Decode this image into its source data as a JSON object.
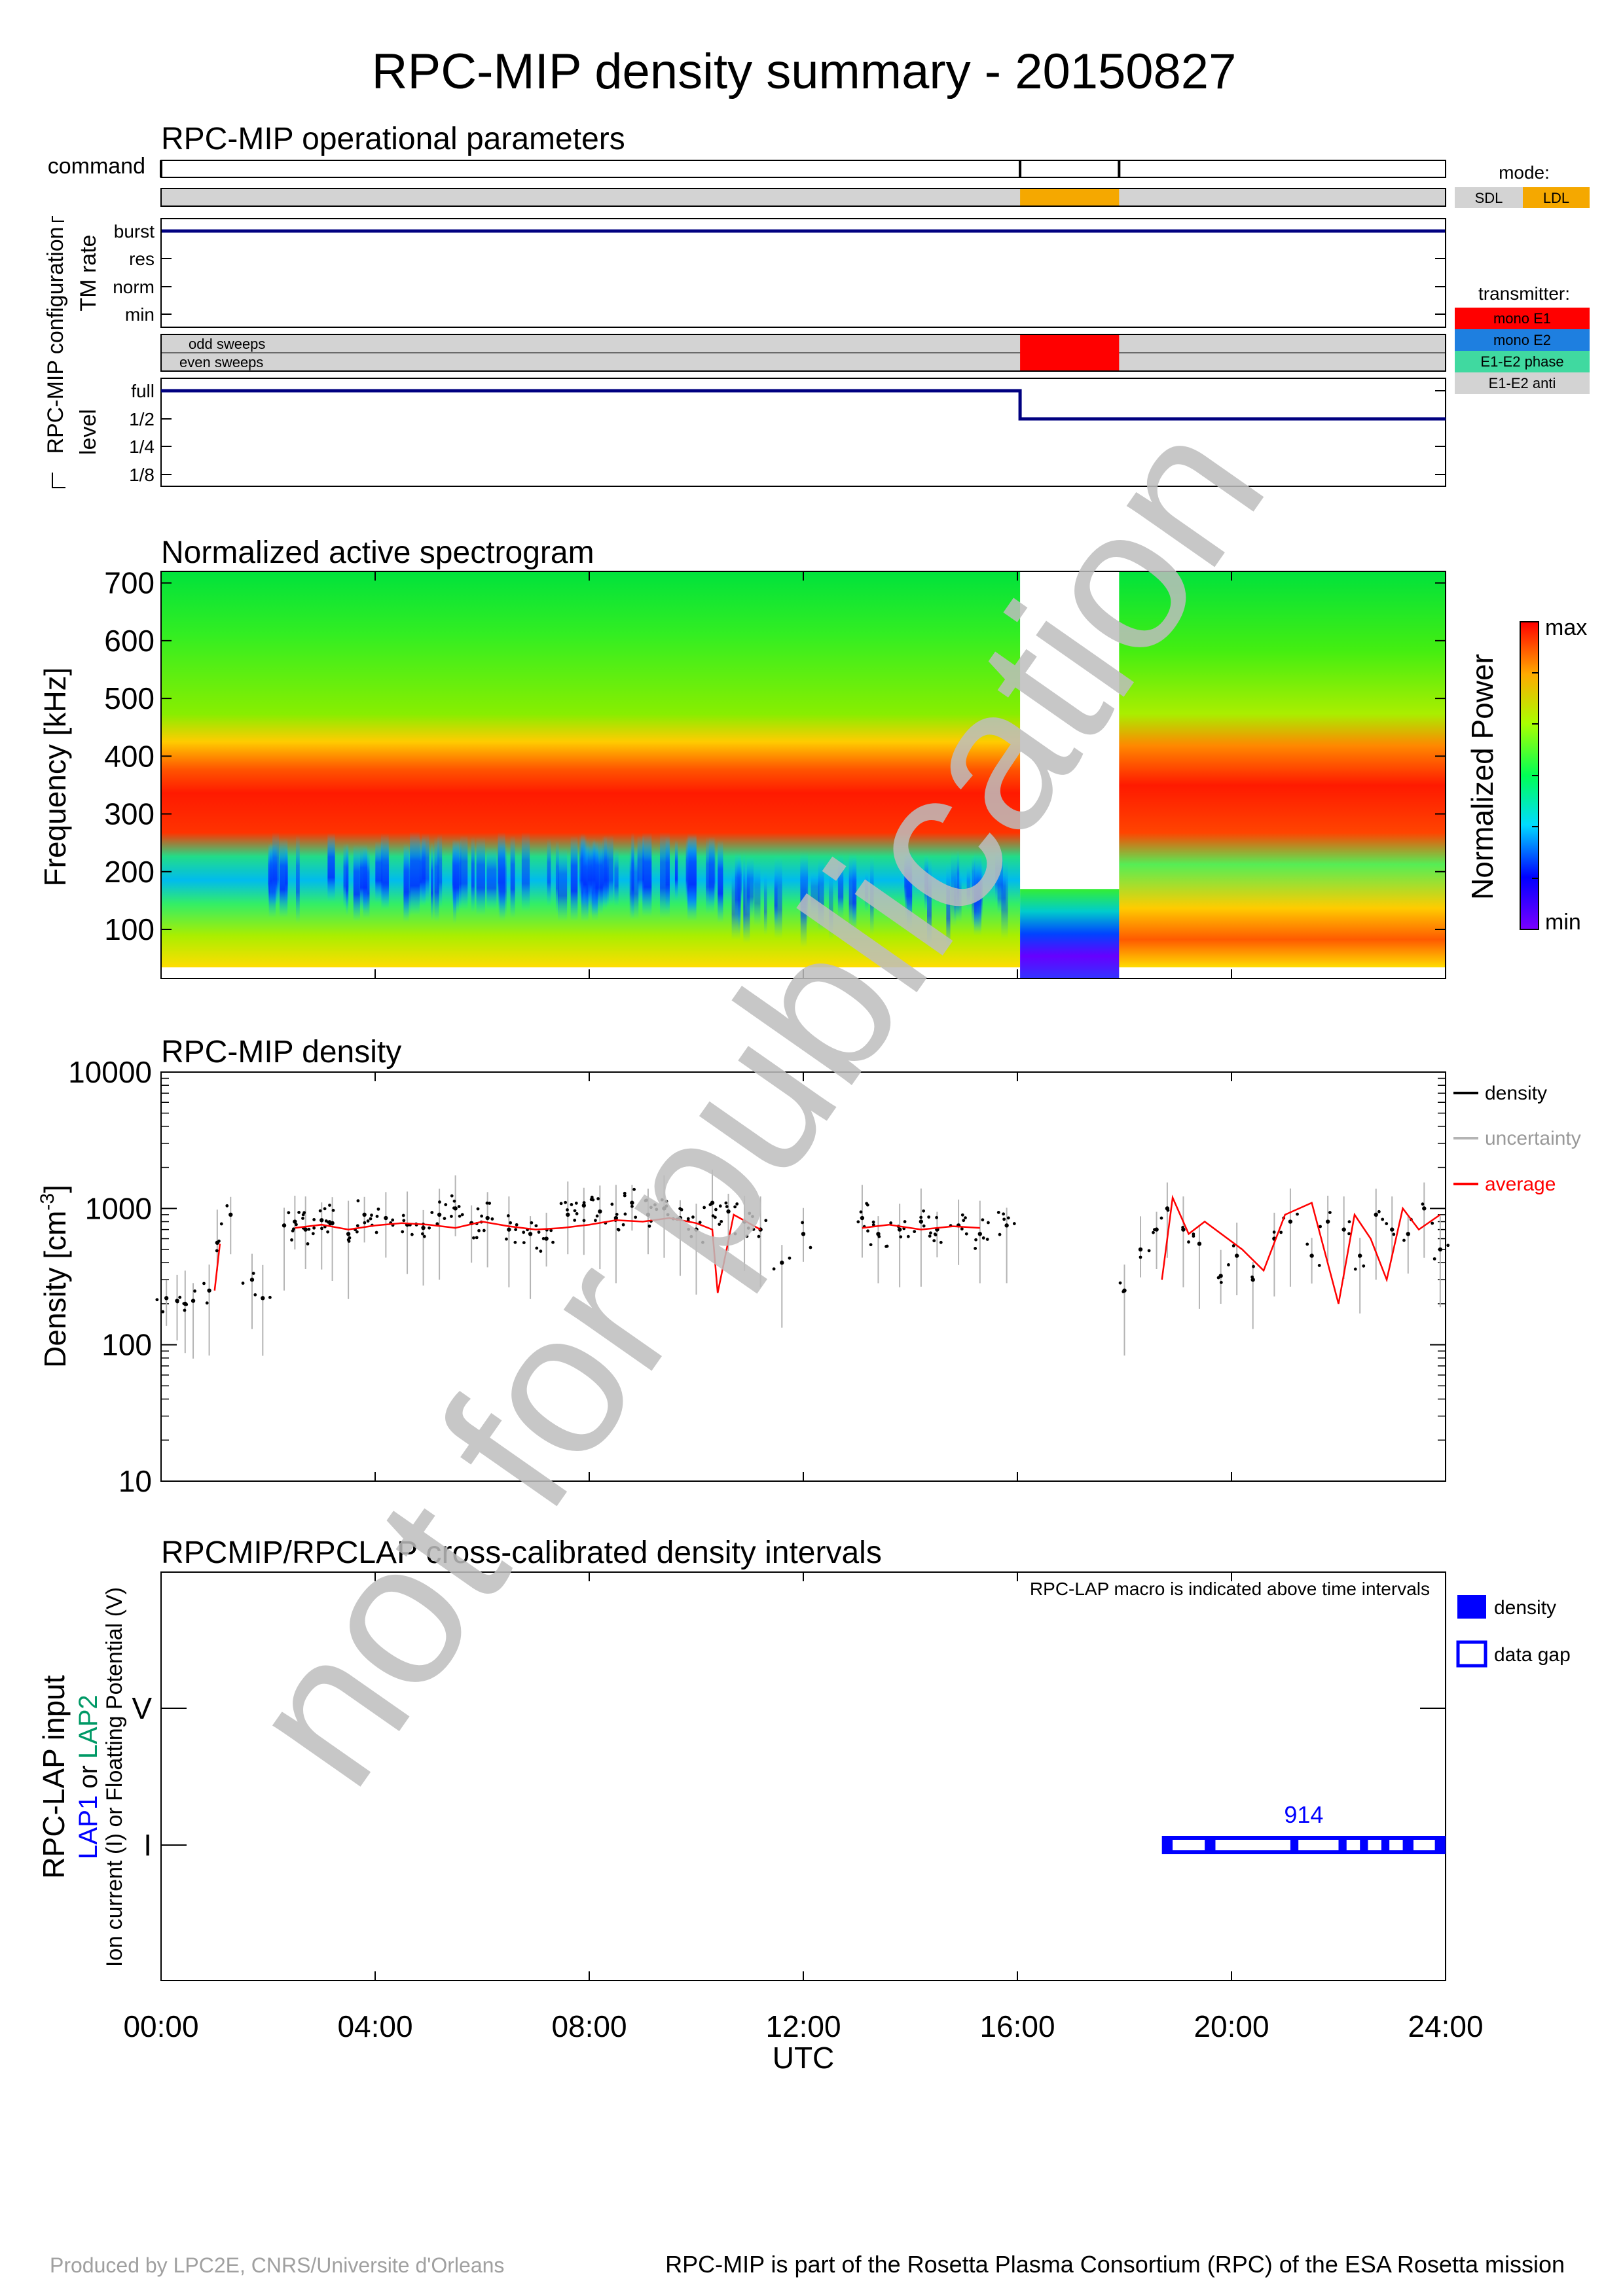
{
  "title": "RPC-MIP density summary - 20150827",
  "colors": {
    "mode_sdl": "#d3d3d3",
    "mode_ldl": "#f5a800",
    "tx_mono_e1": "#ff0000",
    "tx_mono_e2": "#1e7fe0",
    "tx_e1e2_phase": "#40d9a0",
    "tx_e1e2_anti": "#d3d3d3",
    "line_navy": "#000080",
    "density_avg": "#ff0000",
    "uncertainty": "#b4b4b4",
    "lap_blue": "#0000ff",
    "lap2_green": "#009966",
    "watermark": "#bdbdbd"
  },
  "ops": {
    "title": "RPC-MIP operational parameters",
    "command_label": "command",
    "config_label": "RPC-MIP configuration",
    "tm_rate_label": "TM rate",
    "tm_levels": [
      "burst",
      "res",
      "norm",
      "min"
    ],
    "sweeps": [
      "odd sweeps",
      "even sweeps"
    ],
    "level_label": "level",
    "level_values": [
      "full",
      "1/2",
      "1/4",
      "1/8"
    ],
    "mode_title": "mode:",
    "mode_items": [
      "SDL",
      "LDL"
    ],
    "transmitter_title": "transmitter:",
    "transmitter_items": [
      "mono E1",
      "mono E2",
      "E1-E2 phase",
      "E1-E2 anti"
    ],
    "command_ticks_h": [
      0,
      16.05,
      17.9
    ],
    "mode_segments": [
      {
        "start": 0,
        "end": 16.05,
        "mode": "SDL"
      },
      {
        "start": 16.05,
        "end": 17.9,
        "mode": "LDL"
      },
      {
        "start": 17.9,
        "end": 24,
        "mode": "SDL"
      }
    ],
    "tm_rate_series": [
      {
        "start": 0,
        "end": 24,
        "level": "burst"
      }
    ],
    "transmitter_segments": [
      {
        "start": 0,
        "end": 16.05,
        "tx": "E1-E2 anti"
      },
      {
        "start": 16.05,
        "end": 17.9,
        "tx": "mono E1"
      },
      {
        "start": 17.9,
        "end": 24,
        "tx": "E1-E2 anti"
      }
    ],
    "level_series": [
      {
        "start": 0,
        "end": 16.05,
        "level": "full"
      },
      {
        "start": 16.05,
        "end": 24,
        "level": "1/2"
      }
    ]
  },
  "spec": {
    "title": "Normalized active spectrogram",
    "ylabel": "Frequency [kHz]",
    "yticks": [
      "700",
      "600",
      "500",
      "400",
      "300",
      "200",
      "100"
    ],
    "colorbar_label": "Normalized Power",
    "cb_max": "max",
    "cb_min": "min"
  },
  "dens": {
    "title": "RPC-MIP density",
    "ylabel": "Density [cm",
    "ylabel_sup": "-3",
    "ylabel_end": "]",
    "yticks": [
      "10000",
      "1000",
      "100",
      "10"
    ],
    "legend": [
      "density",
      "uncertainty",
      "average"
    ]
  },
  "lap": {
    "title": "RPCMIP/RPCLAP cross-calibrated density intervals",
    "note": "RPC-LAP macro is indicated above time intervals",
    "ylabel1": "RPC-LAP input",
    "ylabel2_lap1": "LAP1",
    "ylabel2_or": "or",
    "ylabel2_lap2": "LAP2",
    "ylabel3": "Ion current (I) or Floatting Potential (V)",
    "yticks": [
      "V",
      "I"
    ],
    "macro": "914",
    "legend": [
      "density",
      "data gap"
    ]
  },
  "xaxis": {
    "ticks": [
      "00:00",
      "04:00",
      "08:00",
      "12:00",
      "16:00",
      "20:00",
      "24:00"
    ],
    "label": "UTC"
  },
  "footer": {
    "left": "Produced by LPC2E, CNRS/Universite d'Orleans",
    "right": "RPC-MIP is part of the Rosetta Plasma Consortium (RPC) of the ESA Rosetta mission"
  },
  "watermark": "not for publication",
  "chart_data": [
    {
      "type": "heatmap",
      "title": "Normalized active spectrogram",
      "ylabel": "Frequency [kHz]",
      "xlabel": "UTC",
      "xlim_hours": [
        0,
        24
      ],
      "ylim": [
        15,
        720
      ],
      "colorbar": "Normalized Power (min to max)",
      "profile_bands_khz": [
        {
          "f": [
            30,
            150
          ],
          "level": "low-mid (cyan/green/yellow)"
        },
        {
          "f": [
            150,
            240
          ],
          "level": "min (blue/cyan) 02:00-10:30"
        },
        {
          "f": [
            240,
            330
          ],
          "level": "max (red)"
        },
        {
          "f": [
            330,
            420
          ],
          "level": "high (orange/yellow)"
        },
        {
          "f": [
            420,
            720
          ],
          "level": "mid (green)"
        }
      ],
      "gaps": [
        {
          "start": 16.05,
          "end": 17.9,
          "f": [
            170,
            720
          ]
        }
      ],
      "ldl_interval_khz": [
        15,
        170
      ]
    },
    {
      "type": "scatter",
      "title": "RPC-MIP density",
      "ylabel": "Density [cm-3]",
      "yscale": "log",
      "ylim": [
        10,
        10000
      ],
      "xlim_hours": [
        0,
        24
      ],
      "series": [
        {
          "name": "density",
          "x": [
            0.1,
            0.3,
            0.45,
            0.6,
            0.9,
            1.05,
            1.3,
            1.7,
            1.9,
            2.3,
            2.5,
            2.7,
            3.0,
            3.2,
            3.5,
            3.8,
            4.2,
            4.6,
            4.9,
            5.2,
            5.5,
            5.8,
            6.1,
            6.5,
            6.9,
            7.2,
            7.6,
            7.9,
            8.2,
            8.5,
            8.8,
            9.1,
            9.4,
            9.7,
            10.0,
            10.3,
            10.6,
            10.9,
            11.2,
            11.6,
            12.0,
            13.1,
            13.4,
            13.8,
            14.2,
            14.5,
            14.9,
            15.3,
            15.8,
            18.0,
            18.3,
            18.6,
            18.8,
            19.1,
            19.4,
            19.8,
            20.1,
            20.4,
            20.8,
            21.1,
            21.5,
            21.8,
            22.1,
            22.4,
            22.7,
            23.0,
            23.3,
            23.6,
            23.9
          ],
          "y": [
            220,
            210,
            200,
            210,
            250,
            560,
            900,
            300,
            220,
            750,
            800,
            700,
            820,
            780,
            650,
            900,
            850,
            760,
            720,
            900,
            1000,
            780,
            850,
            700,
            650,
            600,
            900,
            1050,
            950,
            850,
            1100,
            900,
            1000,
            850,
            700,
            1100,
            950,
            800,
            700,
            400,
            650,
            850,
            650,
            700,
            800,
            700,
            750,
            650,
            750,
            250,
            500,
            700,
            1000,
            700,
            550,
            320,
            450,
            300,
            600,
            800,
            450,
            800,
            700,
            450,
            900,
            700,
            650,
            1000,
            500
          ]
        },
        {
          "name": "average",
          "x": [
            1.0,
            1.1,
            2.5,
            3.0,
            3.5,
            4.0,
            4.5,
            5.0,
            5.5,
            6.0,
            6.5,
            7.0,
            7.5,
            8.0,
            8.5,
            9.0,
            9.5,
            10.0,
            10.3,
            10.4,
            10.7,
            11.2,
            13.1,
            13.6,
            14.2,
            14.8,
            15.3,
            18.7,
            18.9,
            19.2,
            19.5,
            20.2,
            20.6,
            21.0,
            21.5,
            22.0,
            22.3,
            22.6,
            22.9,
            23.2,
            23.5,
            23.9
          ],
          "y": [
            250,
            550,
            720,
            760,
            700,
            750,
            780,
            760,
            720,
            800,
            740,
            700,
            720,
            760,
            820,
            800,
            850,
            780,
            700,
            240,
            900,
            700,
            720,
            760,
            700,
            740,
            720,
            300,
            1200,
            650,
            800,
            500,
            350,
            900,
            1100,
            200,
            900,
            600,
            300,
            1000,
            700,
            900
          ]
        }
      ]
    },
    {
      "type": "bar",
      "title": "RPCMIP/RPCLAP cross-calibrated density intervals",
      "series": [
        {
          "name": "density",
          "channel": "I",
          "macro": "914",
          "intervals_hours": [
            [
              18.7,
              24.0
            ]
          ]
        },
        {
          "name": "data gap",
          "channel": "I",
          "intervals_hours": [
            [
              18.9,
              19.5
            ],
            [
              19.7,
              21.1
            ],
            [
              21.25,
              22.0
            ],
            [
              22.15,
              22.4
            ],
            [
              22.55,
              22.8
            ],
            [
              22.95,
              23.2
            ],
            [
              23.4,
              23.8
            ]
          ]
        }
      ]
    }
  ]
}
